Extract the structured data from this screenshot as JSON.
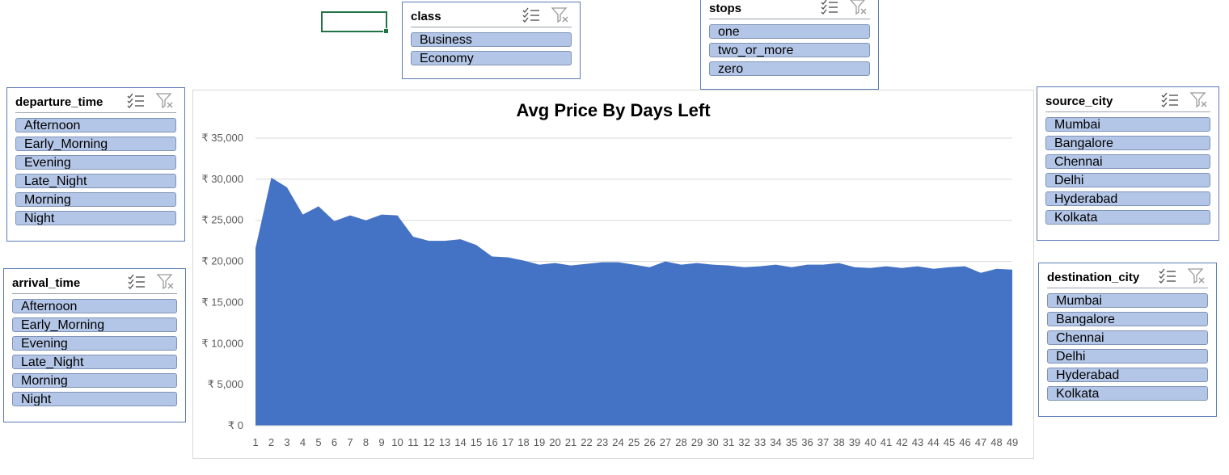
{
  "colors": {
    "area": "#4472c4",
    "item_fill": "#b4c6e7",
    "slicer_border": "#5b7bb5",
    "selection": "#217346"
  },
  "slicers": {
    "class": {
      "title": "class",
      "items": [
        "Business",
        "Economy"
      ]
    },
    "stops": {
      "title": "stops",
      "items": [
        "one",
        "two_or_more",
        "zero"
      ]
    },
    "departure_time": {
      "title": "departure_time",
      "items": [
        "Afternoon",
        "Early_Morning",
        "Evening",
        "Late_Night",
        "Morning",
        "Night"
      ]
    },
    "arrival_time": {
      "title": "arrival_time",
      "items": [
        "Afternoon",
        "Early_Morning",
        "Evening",
        "Late_Night",
        "Morning",
        "Night"
      ]
    },
    "source_city": {
      "title": "source_city",
      "items": [
        "Mumbai",
        "Bangalore",
        "Chennai",
        "Delhi",
        "Hyderabad",
        "Kolkata"
      ]
    },
    "destination_city": {
      "title": "destination_city",
      "items": [
        "Mumbai",
        "Bangalore",
        "Chennai",
        "Delhi",
        "Hyderabad",
        "Kolkata"
      ]
    }
  },
  "chart_data": {
    "type": "area",
    "title": "Avg Price By Days Left",
    "xlabel": "",
    "ylabel": "",
    "x": [
      1,
      2,
      3,
      4,
      5,
      6,
      7,
      8,
      9,
      10,
      11,
      12,
      13,
      14,
      15,
      16,
      17,
      18,
      19,
      20,
      21,
      22,
      23,
      24,
      25,
      26,
      27,
      28,
      29,
      30,
      31,
      32,
      33,
      34,
      35,
      36,
      37,
      38,
      39,
      40,
      41,
      42,
      43,
      44,
      45,
      46,
      47,
      48,
      49
    ],
    "values": [
      21600,
      30200,
      29000,
      25700,
      26700,
      24900,
      25600,
      25000,
      25700,
      25600,
      23000,
      22500,
      22500,
      22700,
      22000,
      20600,
      20500,
      20100,
      19600,
      19800,
      19500,
      19700,
      19900,
      19900,
      19600,
      19300,
      20000,
      19600,
      19800,
      19600,
      19500,
      19300,
      19400,
      19600,
      19300,
      19600,
      19600,
      19800,
      19300,
      19200,
      19400,
      19200,
      19400,
      19100,
      19300,
      19400,
      18600,
      19100,
      19000
    ],
    "yticks": [
      "₹ 35,000",
      "₹ 30,000",
      "₹ 25,000",
      "₹ 20,000",
      "₹ 15,000",
      "₹ 10,000",
      "₹ 5,000",
      "₹ 0"
    ],
    "ylim": [
      0,
      35000
    ],
    "grid": true,
    "legend": "none"
  }
}
